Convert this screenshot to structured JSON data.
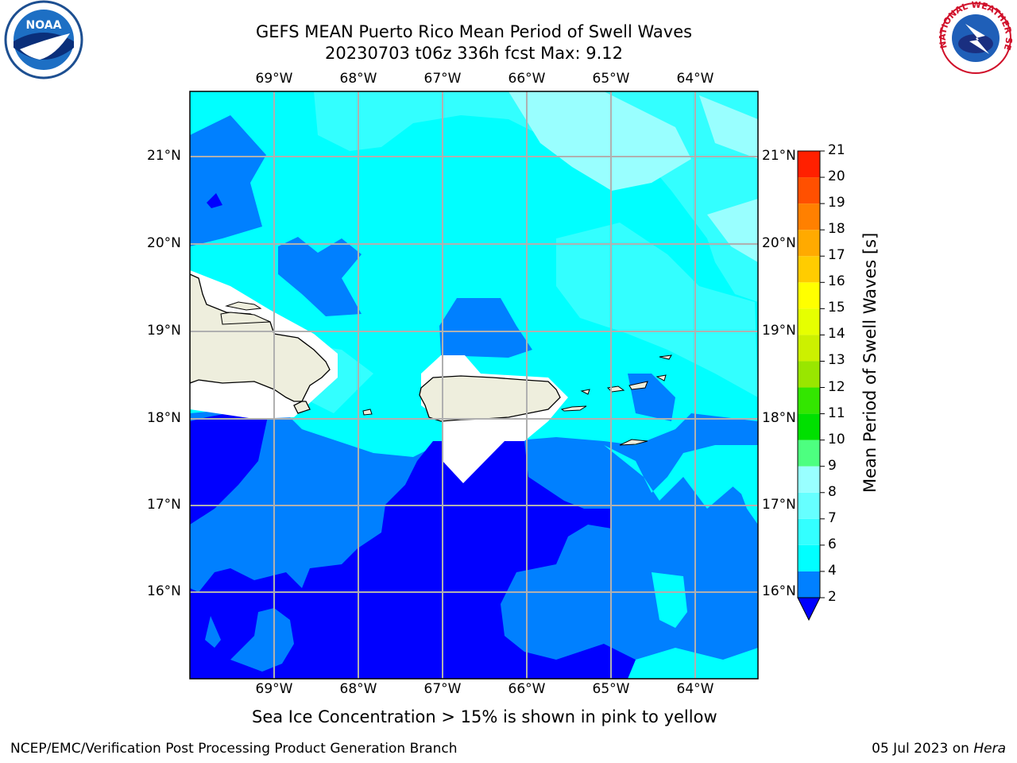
{
  "title": {
    "line1": "GEFS MEAN Puerto Rico Mean Period of Swell Waves",
    "line2": "20230703 t06z 336h fcst   Max: 9.12"
  },
  "map": {
    "longitude_labels": [
      "69°W",
      "68°W",
      "67°W",
      "66°W",
      "65°W",
      "64°W"
    ],
    "latitude_labels_left": [
      "21°N",
      "20°N",
      "19°N",
      "18°N",
      "17°N",
      "16°N"
    ],
    "latitude_labels_right": [
      "21°N",
      "20°N",
      "19°N",
      "18°N",
      "17°N",
      "16°N"
    ],
    "land_color": "#eeeedd",
    "grid_color": "#b0b0b0"
  },
  "colorbar": {
    "label": "Mean Period of Swell Waves [s]",
    "ticks": [
      "2",
      "4",
      "6",
      "7",
      "8",
      "9",
      "10",
      "11",
      "12",
      "13",
      "14",
      "15",
      "16",
      "17",
      "18",
      "19",
      "20",
      "21"
    ],
    "colors": [
      "#0000ff",
      "#0080ff",
      "#00ffff",
      "#33ffff",
      "#66ffff",
      "#99ffff",
      "#4dff80",
      "#00e000",
      "#33e600",
      "#99e600",
      "#ccf000",
      "#e6ff00",
      "#ffff00",
      "#ffcc00",
      "#ffaa00",
      "#ff8000",
      "#ff5000",
      "#ff2000",
      "#ff0000"
    ]
  },
  "caption": "Sea Ice Concentration > 15% is shown in pink to yellow",
  "footer": {
    "left": "NCEP/EMC/Verification Post Processing Product Generation Branch",
    "date": "05 Jul 2023 on ",
    "host": "Hera"
  },
  "logos": {
    "noaa": "NOAA",
    "nws": "NATIONAL WEATHER SERVICE"
  }
}
